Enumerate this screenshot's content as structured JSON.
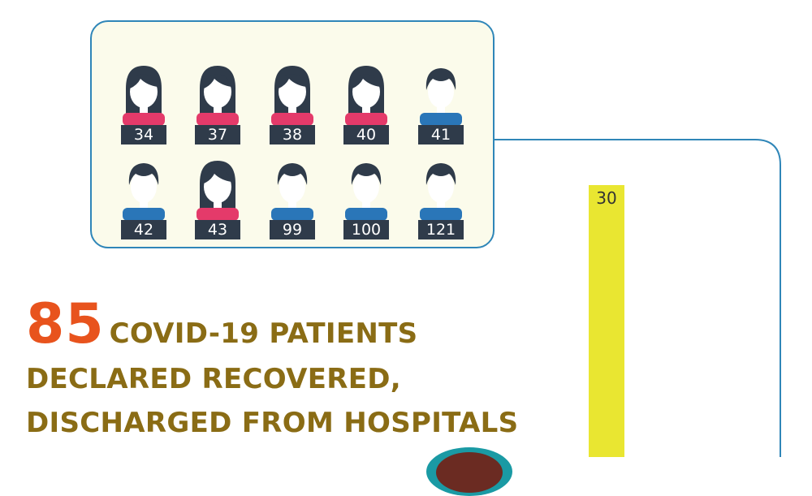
{
  "patients": [
    {
      "id": "34",
      "gender": "female"
    },
    {
      "id": "37",
      "gender": "female"
    },
    {
      "id": "38",
      "gender": "female"
    },
    {
      "id": "40",
      "gender": "female"
    },
    {
      "id": "41",
      "gender": "male"
    },
    {
      "id": "42",
      "gender": "male"
    },
    {
      "id": "43",
      "gender": "female"
    },
    {
      "id": "99",
      "gender": "male"
    },
    {
      "id": "100",
      "gender": "male"
    },
    {
      "id": "121",
      "gender": "male"
    }
  ],
  "bar": {
    "value": "30"
  },
  "headline": {
    "number": "85",
    "line1": "COVID-19 PATIENTS",
    "line2": "DECLARED RECOVERED,",
    "line3": "DISCHARGED FROM HOSPITALS"
  },
  "colors": {
    "female_shirt": "#e43a6a",
    "male_shirt": "#2a76b8",
    "hair": "#2f3b4a",
    "badge": "#2f3b4a",
    "panel_bg": "#fbfbeb",
    "panel_border": "#2f86b8",
    "bar": "#e9e631",
    "number": "#e8531d",
    "headline": "#8a6c15"
  },
  "icons": {
    "female": "female-patient-icon",
    "male": "male-patient-icon"
  }
}
